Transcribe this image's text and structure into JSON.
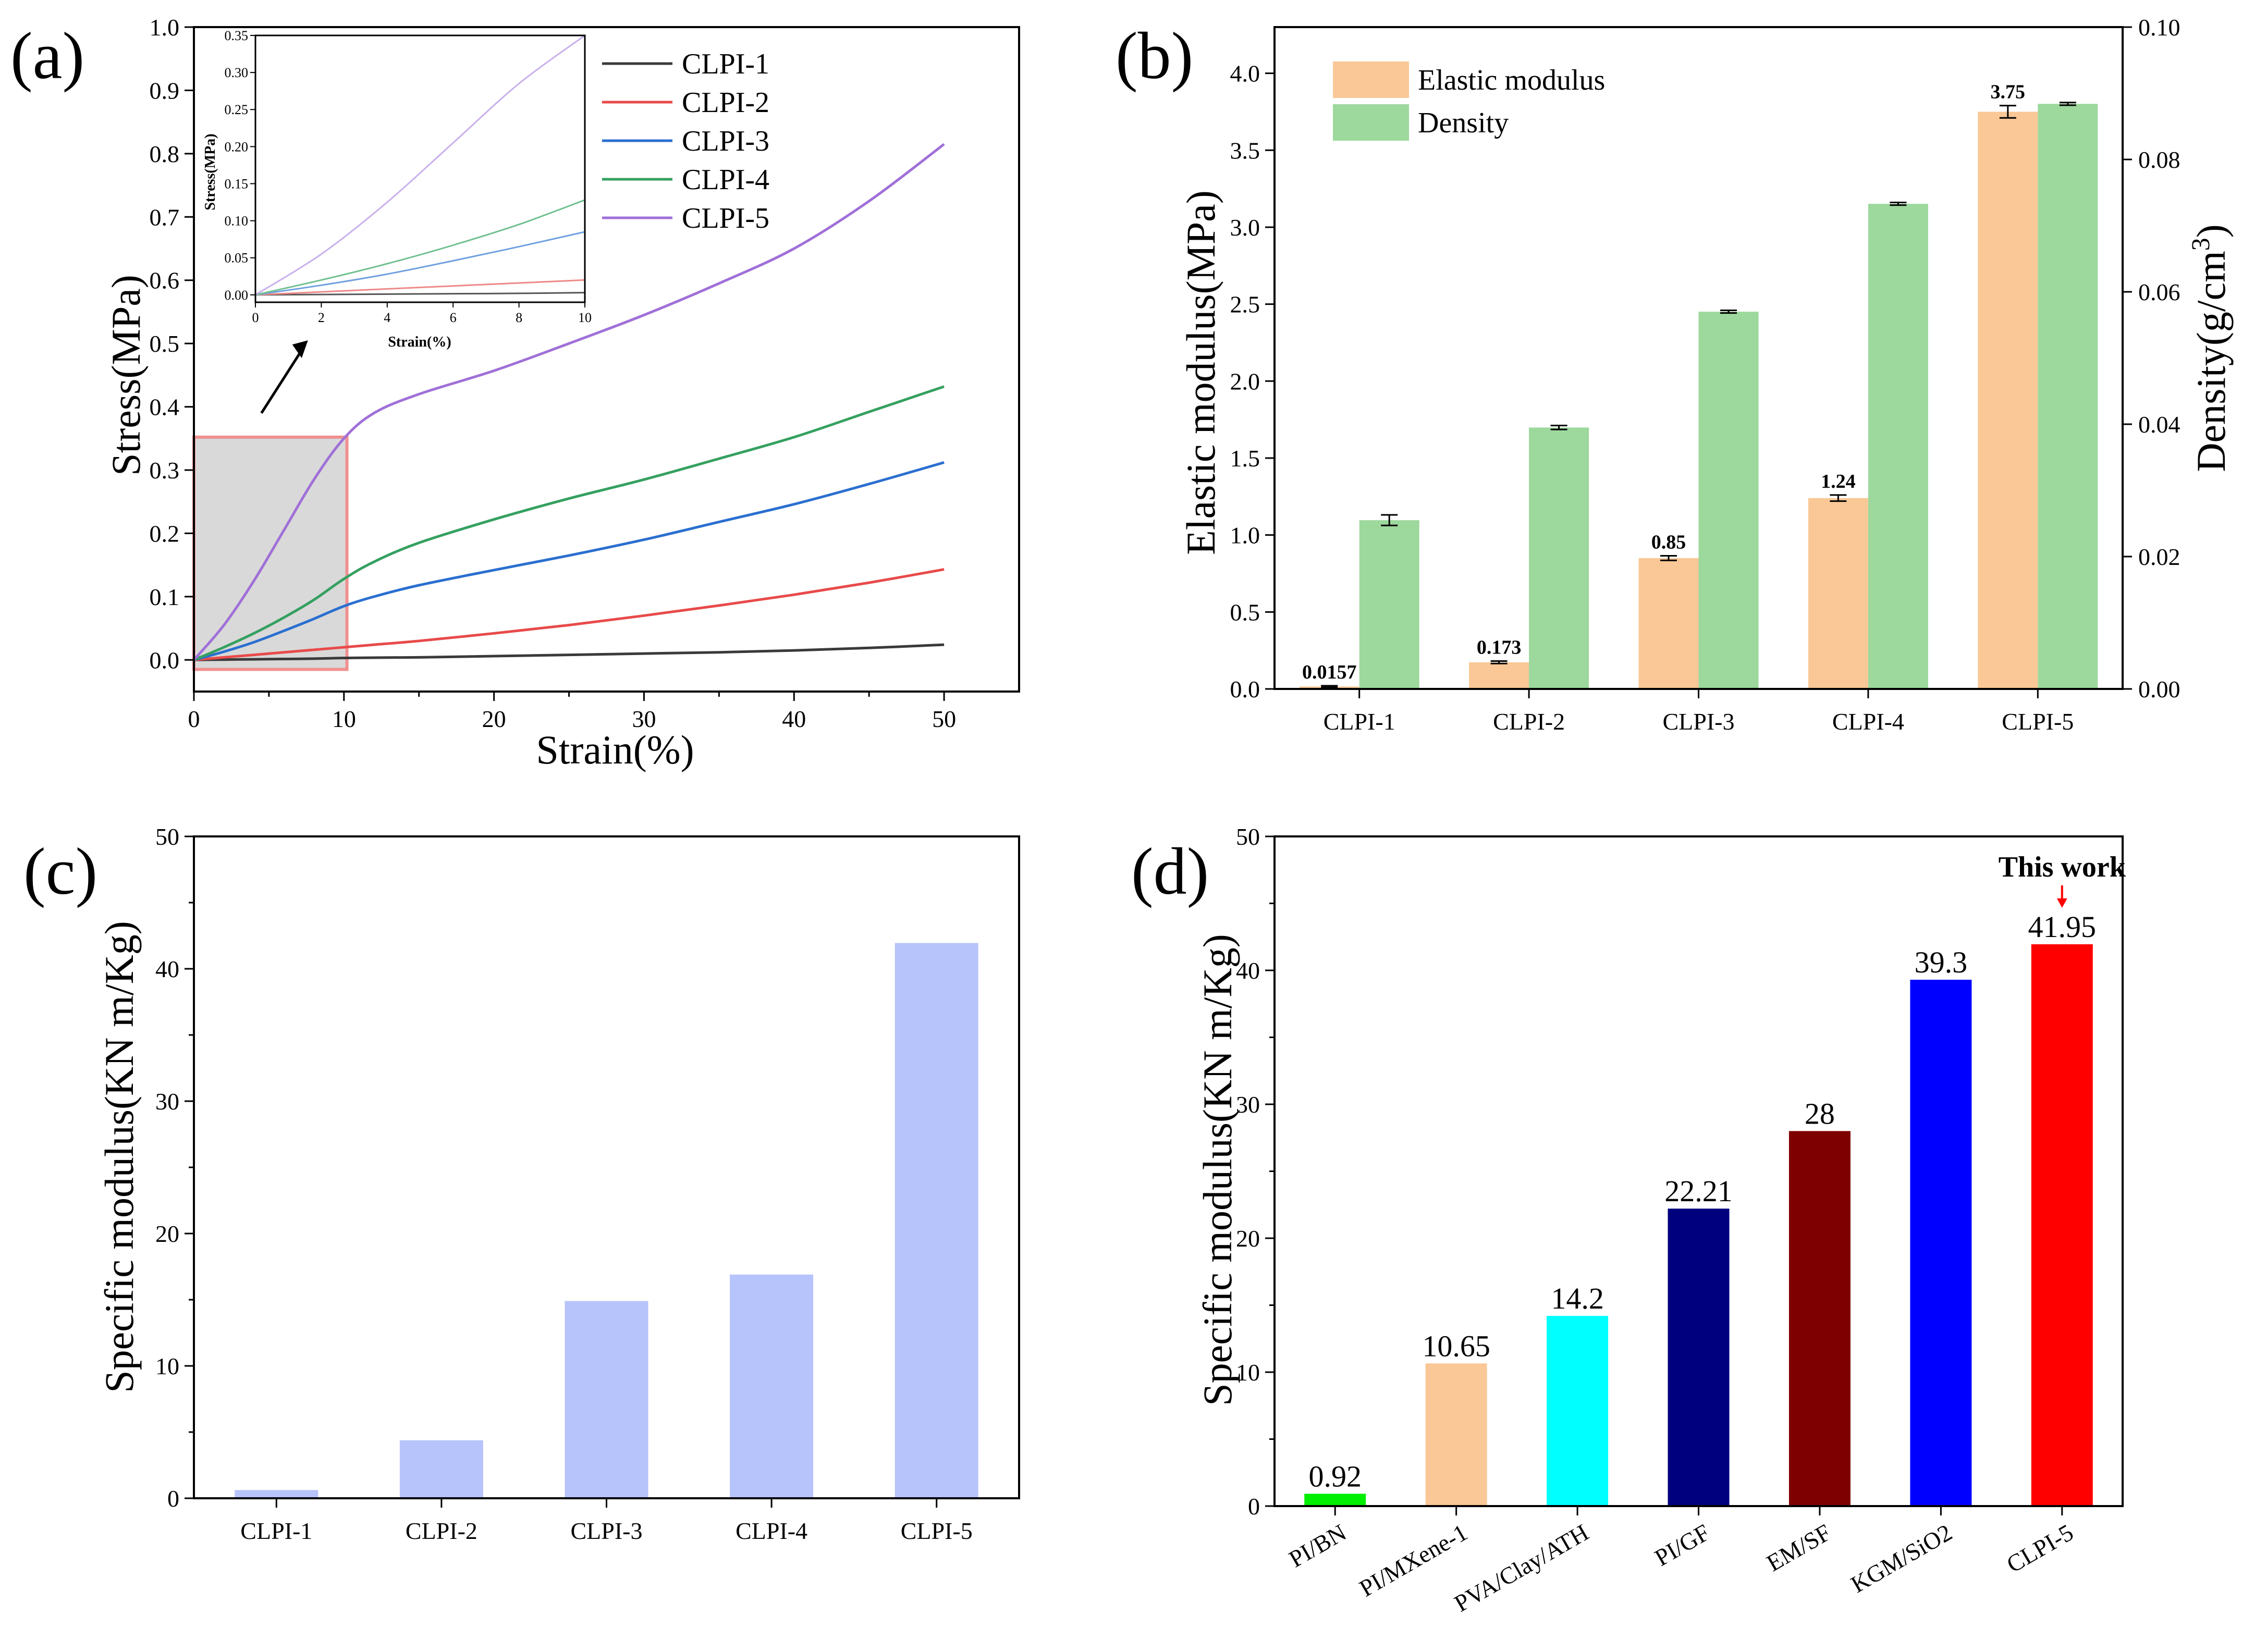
{
  "panel_labels": {
    "a": "(a)",
    "b": "(b)",
    "c": "(c)",
    "d": "(d)"
  },
  "chart_data": [
    {
      "panel": "(a)",
      "type": "line",
      "xlabel": "Strain(%)",
      "ylabel": "Stress(MPa)",
      "xlim": [
        0,
        55
      ],
      "ylim": [
        -0.05,
        1.0
      ],
      "xticks": [
        "0",
        "10",
        "20",
        "30",
        "40",
        "50"
      ],
      "yticks": [
        "0.0",
        "0.1",
        "0.2",
        "0.3",
        "0.4",
        "0.5",
        "0.6",
        "0.7",
        "0.8",
        "0.9",
        "1.0"
      ],
      "legend_position": "top-right",
      "x": [
        0,
        2,
        4,
        6,
        8,
        10,
        12,
        15,
        20,
        25,
        30,
        35,
        40,
        45,
        50
      ],
      "series": [
        {
          "name": "CLPI-1",
          "color": "#3a3a3a",
          "values": [
            0,
            0.0005,
            0.001,
            0.0015,
            0.002,
            0.003,
            0.0035,
            0.004,
            0.006,
            0.008,
            0.01,
            0.012,
            0.015,
            0.019,
            0.024
          ]
        },
        {
          "name": "CLPI-2",
          "color": "#e84a4a",
          "values": [
            0,
            0.004,
            0.008,
            0.012,
            0.016,
            0.02,
            0.024,
            0.03,
            0.042,
            0.055,
            0.07,
            0.086,
            0.103,
            0.122,
            0.143
          ]
        },
        {
          "name": "CLPI-3",
          "color": "#2a6fd0",
          "values": [
            0,
            0.013,
            0.028,
            0.046,
            0.065,
            0.085,
            0.1,
            0.118,
            0.142,
            0.165,
            0.19,
            0.218,
            0.246,
            0.278,
            0.312
          ]
        },
        {
          "name": "CLPI-4",
          "color": "#35a060",
          "values": [
            0,
            0.02,
            0.042,
            0.067,
            0.095,
            0.128,
            0.155,
            0.185,
            0.222,
            0.255,
            0.285,
            0.318,
            0.352,
            0.392,
            0.432
          ]
        },
        {
          "name": "CLPI-5",
          "color": "#a070d8",
          "values": [
            0,
            0.055,
            0.125,
            0.205,
            0.285,
            0.35,
            0.39,
            0.42,
            0.457,
            0.5,
            0.545,
            0.595,
            0.65,
            0.725,
            0.815
          ]
        }
      ],
      "inset": {
        "xlabel": "Strain(%)",
        "ylabel": "Stress(MPa)",
        "xlim": [
          0,
          10
        ],
        "ylim": [
          -0.01,
          0.35
        ],
        "xticks": [
          "0",
          "2",
          "4",
          "6",
          "8",
          "10"
        ],
        "yticks": [
          "0.00",
          "0.05",
          "0.10",
          "0.15",
          "0.20",
          "0.25",
          "0.30",
          "0.35"
        ],
        "x": [
          0,
          2,
          4,
          6,
          8,
          10
        ],
        "series": [
          {
            "name": "CLPI-1",
            "color": "#555555",
            "values": [
              0,
              0.0005,
              0.001,
              0.0015,
              0.002,
              0.003
            ]
          },
          {
            "name": "CLPI-2",
            "color": "#ee8888",
            "values": [
              0,
              0.004,
              0.008,
              0.012,
              0.016,
              0.02
            ]
          },
          {
            "name": "CLPI-3",
            "color": "#6fa0e0",
            "values": [
              0,
              0.013,
              0.028,
              0.046,
              0.065,
              0.085
            ]
          },
          {
            "name": "CLPI-4",
            "color": "#70c090",
            "values": [
              0,
              0.02,
              0.042,
              0.067,
              0.095,
              0.128
            ]
          },
          {
            "name": "CLPI-5",
            "color": "#c8b0ec",
            "values": [
              0,
              0.055,
              0.125,
              0.205,
              0.285,
              0.35
            ]
          }
        ]
      }
    },
    {
      "panel": "(b)",
      "type": "bar",
      "categories": [
        "CLPI-1",
        "CLPI-2",
        "CLPI-3",
        "CLPI-4",
        "CLPI-5"
      ],
      "ylabel": "Elastic modulus(MPa)",
      "y2label_main": "Density(g/cm",
      "y2label_sup": "3",
      "y2label_end": ")",
      "ylim": [
        0,
        4.3
      ],
      "y2lim": [
        0,
        0.1
      ],
      "yticks": [
        "0.0",
        "0.5",
        "1.0",
        "1.5",
        "2.0",
        "2.5",
        "3.0",
        "3.5",
        "4.0"
      ],
      "y2ticks": [
        "0.00",
        "0.02",
        "0.04",
        "0.06",
        "0.08",
        "0.10"
      ],
      "legend_position": "top-left",
      "series": [
        {
          "name": "Elastic modulus",
          "color": "#f9c896",
          "axis": "left",
          "values": [
            0.0157,
            0.173,
            0.85,
            1.24,
            3.75
          ],
          "errors": [
            0.005,
            0.008,
            0.015,
            0.02,
            0.04
          ],
          "labels": [
            "0.0157",
            "0.173",
            "0.85",
            "1.24",
            "3.75"
          ]
        },
        {
          "name": "Density",
          "color": "#9dd89d",
          "axis": "right",
          "values": [
            0.0255,
            0.0395,
            0.057,
            0.0733,
            0.0884
          ],
          "errors": [
            0.0008,
            0.0003,
            0.0002,
            0.0002,
            0.0002
          ]
        }
      ]
    },
    {
      "panel": "(c)",
      "type": "bar",
      "categories": [
        "CLPI-1",
        "CLPI-2",
        "CLPI-3",
        "CLPI-4",
        "CLPI-5"
      ],
      "ylabel": "Specific modulus(KN m/Kg)",
      "ylim": [
        0,
        50
      ],
      "yticks": [
        "0",
        "10",
        "20",
        "30",
        "40",
        "50"
      ],
      "series": [
        {
          "name": "Specific modulus",
          "color": "#b7c3fb",
          "values": [
            0.62,
            4.38,
            14.9,
            16.9,
            41.95
          ]
        }
      ]
    },
    {
      "panel": "(d)",
      "type": "bar",
      "categories": [
        "PI/BN",
        "PI/MXene-1",
        "PVA/Clay/ATH",
        "PI/GF",
        "EM/SF",
        "KGM/SiO2",
        "CLPI-5"
      ],
      "ylabel": "Specific modulus(KN m/Kg)",
      "ylim": [
        0,
        50
      ],
      "yticks": [
        "0",
        "10",
        "20",
        "30",
        "40",
        "50"
      ],
      "values": [
        0.92,
        10.65,
        14.2,
        22.21,
        28,
        39.3,
        41.95
      ],
      "labels": [
        "0.92",
        "10.65",
        "14.2",
        "22.21",
        "28",
        "39.3",
        "41.95"
      ],
      "colors": [
        "#00ee00",
        "#f9c896",
        "#00ffff",
        "#00007f",
        "#7f0000",
        "#0000ff",
        "#ff0000"
      ],
      "annotation": "This work",
      "annotation_color": "#ff0000"
    }
  ]
}
